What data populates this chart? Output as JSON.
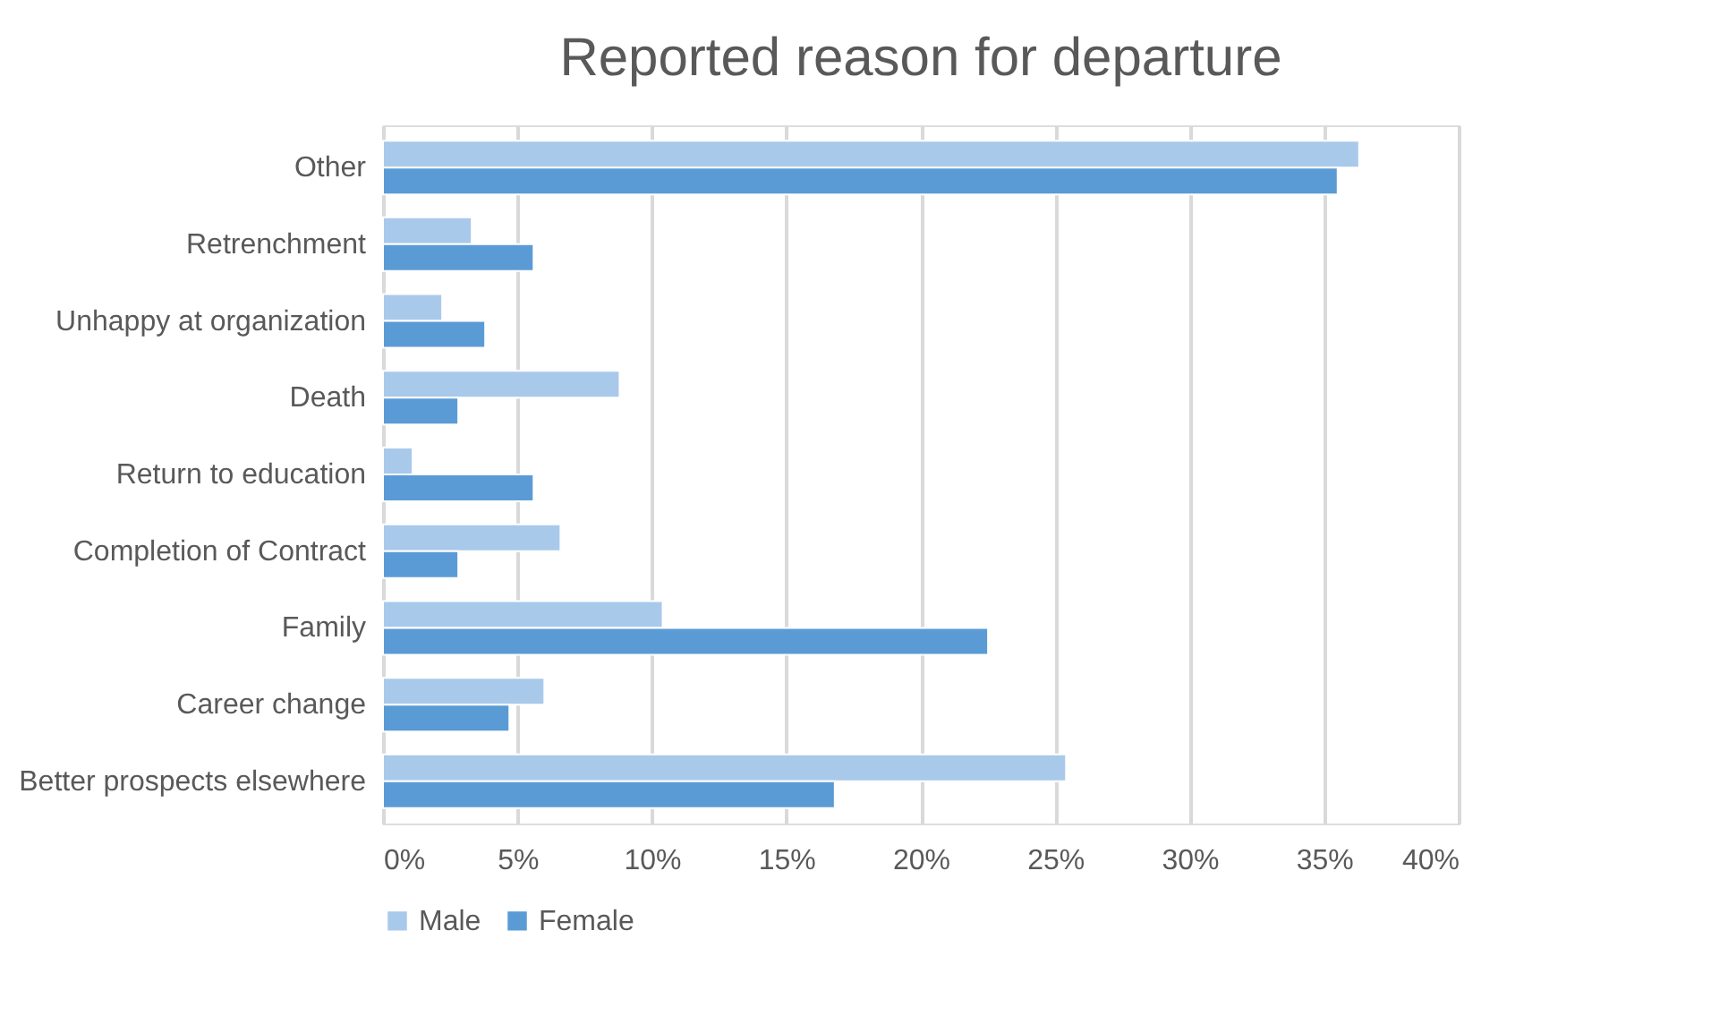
{
  "chart_data": {
    "type": "bar",
    "orientation": "horizontal",
    "title": "Reported reason for departure",
    "categories": [
      "Other",
      "Retrenchment",
      "Unhappy at organization",
      "Death",
      "Return to education",
      "Completion of Contract",
      "Family",
      "Career change",
      "Better prospects elsewhere"
    ],
    "series": [
      {
        "name": "Male",
        "color": "#a9c9eb",
        "values": [
          36.3,
          3.3,
          2.2,
          8.8,
          1.1,
          6.6,
          10.4,
          6.0,
          25.4
        ]
      },
      {
        "name": "Female",
        "color": "#5b9bd5",
        "values": [
          35.5,
          5.6,
          3.8,
          2.8,
          5.6,
          2.8,
          22.5,
          4.7,
          16.8
        ]
      }
    ],
    "xlim": [
      0,
      40
    ],
    "xticks": [
      {
        "value": 0,
        "label": "0%"
      },
      {
        "value": 5,
        "label": "5%"
      },
      {
        "value": 10,
        "label": "10%"
      },
      {
        "value": 15,
        "label": "15%"
      },
      {
        "value": 20,
        "label": "20%"
      },
      {
        "value": 25,
        "label": "25%"
      },
      {
        "value": 30,
        "label": "30%"
      },
      {
        "value": 35,
        "label": "35%"
      },
      {
        "value": 40,
        "label": "40%"
      }
    ],
    "grid": "x",
    "legend": "bottom"
  }
}
